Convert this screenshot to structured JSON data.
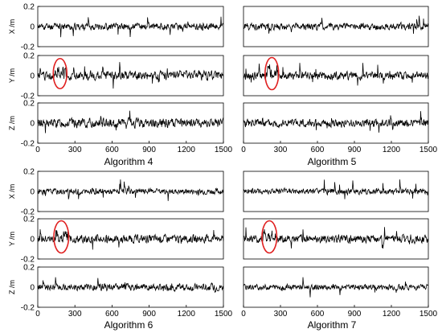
{
  "chart_data": [
    {
      "type": "line",
      "title": "Algorithm 4",
      "xlim": [
        0,
        1500
      ],
      "xticks": [
        "0",
        "300",
        "600",
        "900",
        "1200",
        "1500"
      ],
      "subplots": [
        {
          "ylabel": "X /m",
          "ylim": [
            -0.2,
            0.2
          ],
          "yticks": [
            "0.2",
            "0",
            "-0.2"
          ],
          "noise": 0.03,
          "seed": 11,
          "ellipse": null
        },
        {
          "ylabel": "Y /m",
          "ylim": [
            -0.2,
            0.2
          ],
          "yticks": [
            "0.2",
            "0",
            "-0.2"
          ],
          "noise": 0.04,
          "seed": 12,
          "ellipse": {
            "cx": 180,
            "cy": 0.02,
            "rx": 55,
            "ry": 0.15
          }
        },
        {
          "ylabel": "Z /m",
          "ylim": [
            -0.2,
            0.2
          ],
          "yticks": [
            "0.2",
            "0",
            "-0.2"
          ],
          "noise": 0.04,
          "seed": 13,
          "ellipse": null
        }
      ]
    },
    {
      "type": "line",
      "title": "Algorithm 5",
      "xlim": [
        0,
        1500
      ],
      "xticks": [
        "0",
        "300",
        "600",
        "900",
        "1200",
        "1500"
      ],
      "subplots": [
        {
          "ylabel": "",
          "ylim": [
            -0.2,
            0.2
          ],
          "yticks": [],
          "noise": 0.03,
          "seed": 21,
          "ellipse": null
        },
        {
          "ylabel": "",
          "ylim": [
            -0.2,
            0.2
          ],
          "yticks": [],
          "noise": 0.035,
          "seed": 22,
          "ellipse": {
            "cx": 230,
            "cy": 0.02,
            "rx": 55,
            "ry": 0.16
          }
        },
        {
          "ylabel": "",
          "ylim": [
            -0.2,
            0.2
          ],
          "yticks": [],
          "noise": 0.035,
          "seed": 23,
          "ellipse": null
        }
      ]
    },
    {
      "type": "line",
      "title": "Algorithm 6",
      "xlim": [
        0,
        1500
      ],
      "xticks": [
        "0",
        "300",
        "600",
        "900",
        "1200",
        "1500"
      ],
      "subplots": [
        {
          "ylabel": "X /m",
          "ylim": [
            -0.2,
            0.2
          ],
          "yticks": [
            "0.2",
            "0",
            "-0.2"
          ],
          "noise": 0.025,
          "seed": 31,
          "ellipse": null
        },
        {
          "ylabel": "Y /m",
          "ylim": [
            -0.2,
            0.2
          ],
          "yticks": [
            "0.2",
            "0",
            "-0.2"
          ],
          "noise": 0.035,
          "seed": 32,
          "ellipse": {
            "cx": 190,
            "cy": 0.02,
            "rx": 60,
            "ry": 0.16
          }
        },
        {
          "ylabel": "Z /m",
          "ylim": [
            -0.2,
            0.2
          ],
          "yticks": [
            "0.2",
            "0",
            "-0.2"
          ],
          "noise": 0.03,
          "seed": 33,
          "ellipse": null
        }
      ]
    },
    {
      "type": "line",
      "title": "Algorithm 7",
      "xlim": [
        0,
        1500
      ],
      "xticks": [
        "0",
        "300",
        "600",
        "900",
        "1200",
        "1500"
      ],
      "subplots": [
        {
          "ylabel": "",
          "ylim": [
            -0.2,
            0.2
          ],
          "yticks": [],
          "noise": 0.025,
          "seed": 41,
          "ellipse": null
        },
        {
          "ylabel": "",
          "ylim": [
            -0.2,
            0.2
          ],
          "yticks": [],
          "noise": 0.035,
          "seed": 42,
          "ellipse": {
            "cx": 210,
            "cy": 0.02,
            "rx": 60,
            "ry": 0.16
          }
        },
        {
          "ylabel": "",
          "ylim": [
            -0.2,
            0.2
          ],
          "yticks": [],
          "noise": 0.025,
          "seed": 43,
          "ellipse": null
        }
      ]
    }
  ],
  "colors": {
    "trace": "#000000",
    "ellipse": "#e02020",
    "axis": "#000000"
  }
}
